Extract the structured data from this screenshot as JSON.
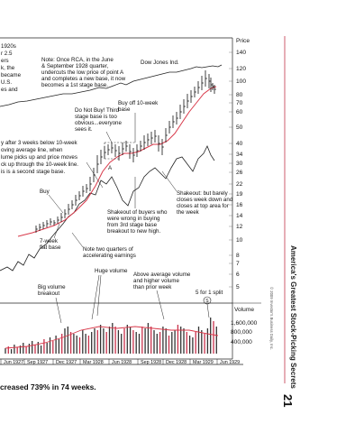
{
  "left_note_lines": [
    "1920s",
    "r 2.5",
    "ers",
    "k, the",
    "became",
    "U.S.",
    "es and"
  ],
  "note_rca": [
    "Note: Once RCA, in the June",
    "& September 1928 quarter,",
    "undercuts the low price of point A",
    "and completes a new base, it now",
    "becomes a 1st stage base."
  ],
  "label_dow": "Dow Jones Ind.",
  "price_header": "Price",
  "price_ticks": [
    "140",
    "120",
    "100",
    "80",
    "70",
    "60",
    "50",
    "40",
    "34",
    "30",
    "26",
    "22",
    "19",
    "16",
    "14",
    "12",
    "10",
    "8",
    "7",
    "6",
    "5"
  ],
  "note_buy_off": [
    "Buy off 10-week",
    "base"
  ],
  "note_do_not_buy": [
    "Do Not Buy! Third",
    "stage base is too",
    "obvious...everyone",
    "sees it."
  ],
  "note_left_mid": [
    "y after 3 weeks below 10-week",
    "oving average line, when",
    "lume picks up and price moves",
    "ck up through the 10-week line.",
    "is is a second stage base."
  ],
  "point_a": "A",
  "note_shakeout_top": [
    "Shakeout: but barely",
    "closes week down and",
    "closes at top area for",
    "the week"
  ],
  "note_shakeout_buyers": [
    "Shakeout of buyers who",
    "were wrong in buying",
    "from 3rd stage base",
    "breakout to new high."
  ],
  "label_buy": "Buy",
  "label_7week": [
    "7-week",
    "flat base"
  ],
  "note_two_quarters": [
    "Note two quarters of",
    "accelerating earnings"
  ],
  "label_huge_volume": "Huge volume",
  "note_above_avg": [
    "Above average volume",
    "and higher volume",
    "than prior week"
  ],
  "label_big_volume": [
    "Big volume",
    "breakout"
  ],
  "label_split": "5 for 1 split",
  "split_circle": "S",
  "volume_header": "Volume",
  "volume_ticks": [
    "1,600,000",
    "800,000",
    "400,000"
  ],
  "dates": [
    "Jun 1927",
    "Sep 1927",
    "Dec 1927",
    "Mar 1928",
    "Jun 1928",
    "Sep 1928",
    "Dec 1928",
    "Mar 1929",
    "Jun 1929"
  ],
  "caption": "creased 739% in 74 weeks.",
  "side_title": "America's Greatest Stock-Picking Secrets",
  "page_number": "21",
  "copyright": "© 2009 Investor's Business Daily, Inc."
}
